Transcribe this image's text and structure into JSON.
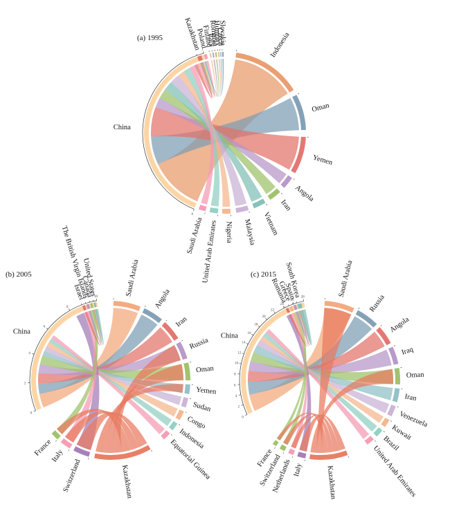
{
  "figure": {
    "type": "chord"
  },
  "chart_data": [
    {
      "type": "chord",
      "title": "(a) 1995",
      "hub": "China",
      "hub_color": "#fdd3a0",
      "partners": [
        {
          "name": "Indonesia",
          "color": "#e89a6a"
        },
        {
          "name": "Oman",
          "color": "#7d9cb3"
        },
        {
          "name": "Yemen",
          "color": "#e2716a"
        },
        {
          "name": "Angola",
          "color": "#b595c6"
        },
        {
          "name": "Iran",
          "color": "#9cc067"
        },
        {
          "name": "Vietnam",
          "color": "#7fbfb6"
        },
        {
          "name": "Malaysia",
          "color": "#c9b2d6"
        },
        {
          "name": "Nigeria",
          "color": "#f2b58a"
        },
        {
          "name": "United Arab Emirates",
          "color": "#8fcfc1"
        },
        {
          "name": "Saudi Arabia",
          "color": "#f49ab2"
        },
        {
          "name": "Kazakhstan",
          "color": "#e2716a"
        },
        {
          "name": "Poland",
          "color": "#f49ab2"
        },
        {
          "name": "Finland",
          "color": "#f4c08a"
        },
        {
          "name": "Italy",
          "color": "#b595c6"
        },
        {
          "name": "Romania",
          "color": "#9cc067"
        },
        {
          "name": "Hungary",
          "color": "#f2b58a"
        },
        {
          "name": "Czech",
          "color": "#8fcfc1"
        },
        {
          "name": "Slovakia",
          "color": "#7d9cb3"
        }
      ],
      "axis_ticks": [
        "0",
        "1"
      ]
    },
    {
      "type": "chord",
      "title": "(b) 2005",
      "hub": "China",
      "hub_color": "#fdd3a0",
      "partners": [
        {
          "name": "Saudi Arabia",
          "color": "#f2a77a"
        },
        {
          "name": "Angola",
          "color": "#7d9cb3"
        },
        {
          "name": "Iran",
          "color": "#e2716a"
        },
        {
          "name": "Russia",
          "color": "#b595c6"
        },
        {
          "name": "Oman",
          "color": "#9cc067"
        },
        {
          "name": "Yemen",
          "color": "#8fbfc6"
        },
        {
          "name": "Sudan",
          "color": "#c9b2d6"
        },
        {
          "name": "Congo",
          "color": "#f2b58a"
        },
        {
          "name": "Indonesia",
          "color": "#8fcfc1"
        },
        {
          "name": "Equatorial Guinea",
          "color": "#f49ab2"
        },
        {
          "name": "Kazakhstan",
          "color": "#e8785e"
        },
        {
          "name": "Switzerland",
          "color": "#a07ab5"
        },
        {
          "name": "Italy",
          "color": "#f49ab2"
        },
        {
          "name": "France",
          "color": "#9cc067"
        },
        {
          "name": "Israel",
          "color": "#e2716a"
        },
        {
          "name": "The British Virgin Islands",
          "color": "#b595c6"
        },
        {
          "name": "Canada",
          "color": "#9cc067"
        },
        {
          "name": "United States",
          "color": "#7fbfb6"
        }
      ],
      "axis_ticks": [
        "0",
        "2",
        "4",
        "6",
        "8",
        "10"
      ]
    },
    {
      "type": "chord",
      "title": "(c) 2015",
      "hub": "China",
      "hub_color": "#fdd3a0",
      "partners": [
        {
          "name": "Saudi Arabia",
          "color": "#f2a77a"
        },
        {
          "name": "Russia",
          "color": "#7d9cb3"
        },
        {
          "name": "Angola",
          "color": "#e2716a"
        },
        {
          "name": "Iraq",
          "color": "#b595c6"
        },
        {
          "name": "Oman",
          "color": "#9cc067"
        },
        {
          "name": "Iran",
          "color": "#8fbfc6"
        },
        {
          "name": "Venezuela",
          "color": "#c9b2d6"
        },
        {
          "name": "Kuwait",
          "color": "#f2b58a"
        },
        {
          "name": "Brazil",
          "color": "#8fcfc1"
        },
        {
          "name": "United Arab Emirates",
          "color": "#f49ab2"
        },
        {
          "name": "Kazakhstan",
          "color": "#e8785e"
        },
        {
          "name": "Italy",
          "color": "#a07ab5"
        },
        {
          "name": "Netherlands",
          "color": "#f49ab2"
        },
        {
          "name": "Switzerland",
          "color": "#9cc067"
        },
        {
          "name": "France",
          "color": "#9cc067"
        },
        {
          "name": "Romania",
          "color": "#e2716a"
        },
        {
          "name": "Greece",
          "color": "#f2b58a"
        },
        {
          "name": "Spain",
          "color": "#b595c6"
        },
        {
          "name": "South Korea",
          "color": "#7fbfb6"
        }
      ],
      "axis_ticks": [
        "0",
        "2",
        "4",
        "6",
        "8",
        "10",
        "12",
        "14",
        "16",
        "18",
        "20",
        "22",
        "24",
        "26",
        "28"
      ]
    }
  ]
}
